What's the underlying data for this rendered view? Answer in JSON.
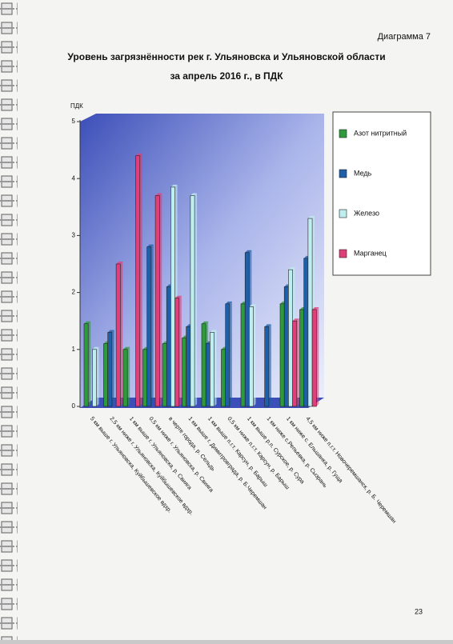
{
  "page": {
    "caption": "Диаграмма 7",
    "number": "23"
  },
  "chart_data": {
    "type": "bar",
    "title": "Уровень загрязнённости рек г. Ульяновска и Ульяновской области",
    "subtitle": "за апрель 2016 г., в ПДК",
    "y_label": "ПДК",
    "categories": [
      "5 км выше г. Ульяновска, Куйбышевское вдхр.",
      "2,5 км ниже г. Ульяновска, Куйбышевское вдхр.",
      "1 км выше г. Ульяновска, р. Свияга",
      "0,5 км ниже г. Ульяновска, р. Свияга",
      "в черте города, р. Сельдь",
      "1 км выше г. Димитровграда, р. Б.Черемшан",
      "1 км выше п.г.т. Карсун, р. Барыш",
      "0,5 км ниже п.г.т. Карсун, р. Барыш",
      "1 км выше р.п. Сурское, р. Сура",
      "1 км ниже с.Репьевка, р. Сызрань",
      "1 км ниже с. Ельшанка, р. Гуща",
      "4,5 км ниже п.г.т. Новочеремшанск, р. Б. Черемшан"
    ],
    "series": [
      {
        "name": "Азот нитритный",
        "color": "#2e9a3c",
        "values": [
          1.45,
          1.1,
          1.0,
          1.0,
          1.1,
          1.2,
          1.45,
          1.0,
          1.8,
          null,
          1.8,
          1.7
        ]
      },
      {
        "name": "Медь",
        "color": "#1f5fa8",
        "values": [
          null,
          1.3,
          null,
          2.8,
          2.1,
          1.4,
          1.1,
          1.8,
          2.7,
          1.4,
          2.1,
          2.6
        ]
      },
      {
        "name": "Железо",
        "color": "#bfeef0",
        "values": [
          1.0,
          null,
          null,
          null,
          3.85,
          3.7,
          1.3,
          null,
          1.75,
          null,
          2.4,
          3.3
        ]
      },
      {
        "name": "Марганец",
        "color": "#e0407a",
        "values": [
          null,
          2.5,
          4.4,
          3.7,
          1.9,
          null,
          null,
          null,
          null,
          null,
          1.5,
          1.7
        ]
      }
    ],
    "ylim": [
      0,
      5
    ],
    "yticks": [
      0,
      1,
      2,
      3,
      4,
      5
    ],
    "legend": "right"
  }
}
